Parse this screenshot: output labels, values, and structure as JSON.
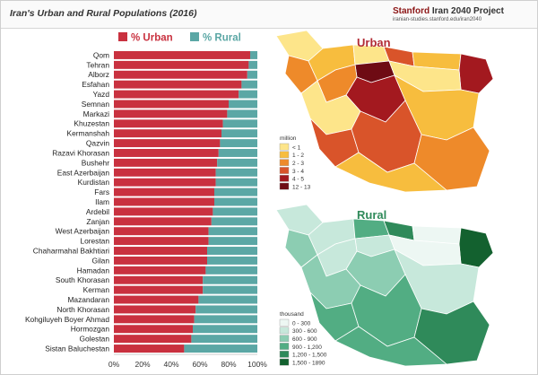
{
  "header": {
    "title": "Iran's Urban and Rural Populations (2016)",
    "brand_university": "Stanford",
    "brand_project": " Iran 2040 Project",
    "brand_url": "iranian-studies.stanford.edu/iran2040"
  },
  "colors": {
    "urban": "#c9313f",
    "rural": "#5ba7a5",
    "urban_map_scale": [
      "#fde58a",
      "#f7bd3e",
      "#ee8a2a",
      "#d9542a",
      "#a3191f",
      "#6e0b14"
    ],
    "rural_map_scale": [
      "#edf7f3",
      "#c7e8db",
      "#8ccdb2",
      "#52ad83",
      "#2f8a5a",
      "#13612f"
    ]
  },
  "chart_data": [
    {
      "type": "bar",
      "stacked": true,
      "orientation": "horizontal",
      "title": "Iran's Urban and Rural Populations (2016)",
      "legend": [
        "% Urban",
        "% Rural"
      ],
      "legend_position": "top",
      "xlim": [
        0,
        100
      ],
      "xticks": [
        "0%",
        "20%",
        "40%",
        "60%",
        "80%",
        "100%"
      ],
      "grid": false,
      "categories": [
        "Qom",
        "Tehran",
        "Alborz",
        "Esfahan",
        "Yazd",
        "Semnan",
        "Markazi",
        "Khuzestan",
        "Kermanshah",
        "Qazvin",
        "Razavi Khorasan",
        "Bushehr",
        "East Azerbaijan",
        "Kurdistan",
        "Fars",
        "Ilam",
        "Ardebil",
        "Zanjan",
        "West Azerbaijan",
        "Lorestan",
        "Chaharmahal Bakhtiari",
        "Gilan",
        "Hamadan",
        "South Khorasan",
        "Kerman",
        "Mazandaran",
        "North Khorasan",
        "Kohgiluyeh Boyer Ahmad",
        "Hormozgan",
        "Golestan",
        "Sistan Baluchestan"
      ],
      "series": [
        {
          "name": "% Urban",
          "values": [
            95,
            94,
            93,
            89,
            87,
            80,
            79,
            76,
            75,
            74,
            73,
            72,
            71,
            71,
            70,
            70,
            69,
            68,
            66,
            66,
            65,
            65,
            64,
            62,
            62,
            59,
            57,
            56,
            55,
            54,
            49
          ]
        },
        {
          "name": "% Rural",
          "values": [
            5,
            6,
            7,
            11,
            13,
            20,
            21,
            24,
            25,
            26,
            27,
            28,
            29,
            29,
            30,
            30,
            31,
            32,
            34,
            34,
            35,
            35,
            36,
            38,
            38,
            41,
            43,
            44,
            45,
            46,
            51
          ]
        }
      ]
    },
    {
      "type": "map",
      "title": "Urban",
      "legend_title": "million",
      "legend": [
        "< 1",
        "1 - 2",
        "2 - 3",
        "3 - 4",
        "4 - 5",
        "12 - 13"
      ],
      "legend_position": "left"
    },
    {
      "type": "map",
      "title": "Rural",
      "legend_title": "thousand",
      "legend": [
        "0 - 300",
        "300 - 600",
        "600 - 900",
        "900 - 1,200",
        "1,200 - 1,500",
        "1,500 - 1890"
      ],
      "legend_position": "left"
    }
  ]
}
